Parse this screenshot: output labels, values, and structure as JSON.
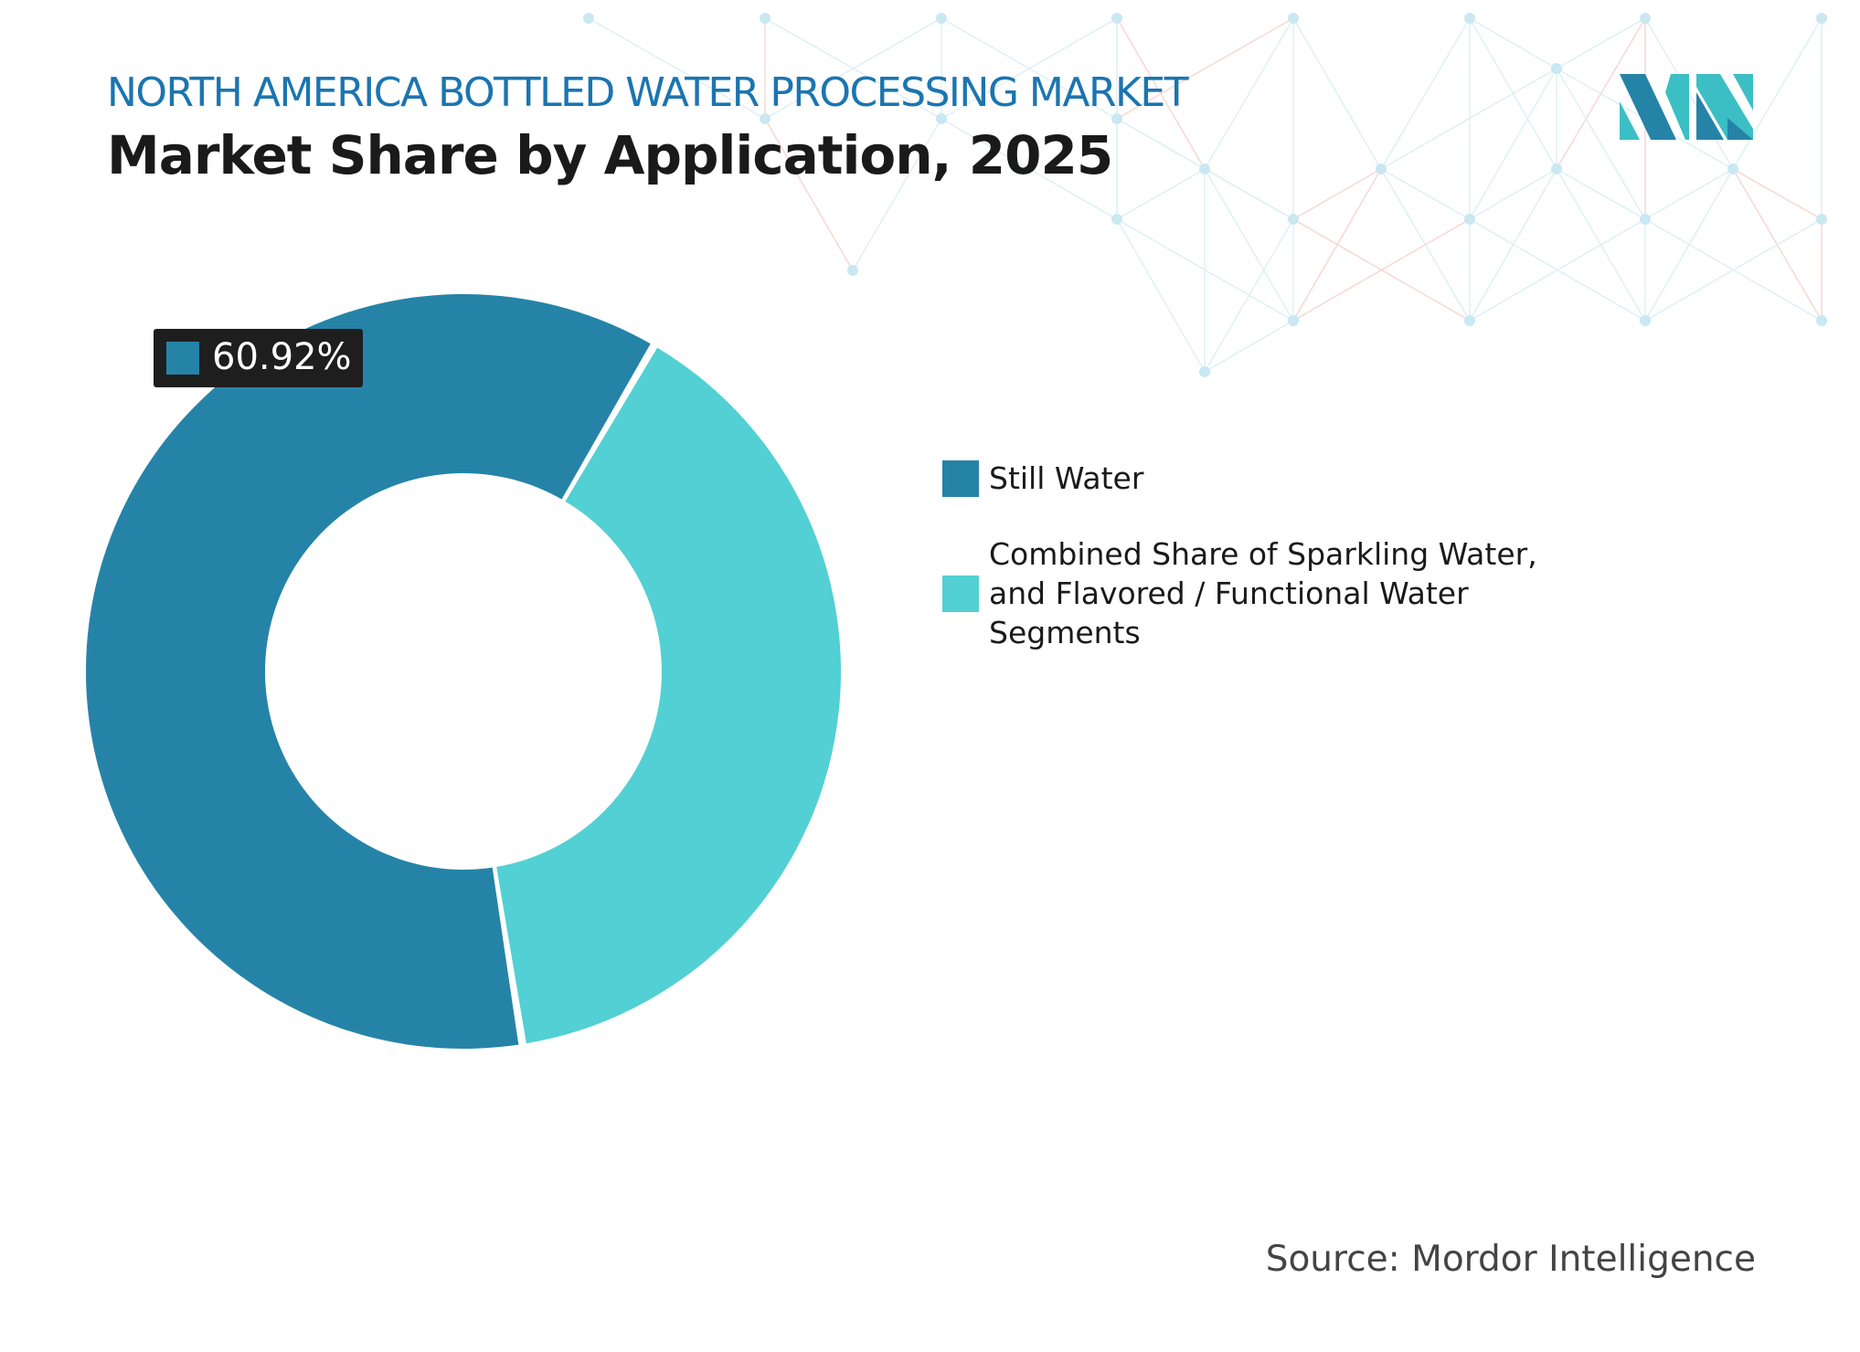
{
  "header": {
    "supertitle": "NORTH AMERICA BOTTLED WATER PROCESSING MARKET",
    "title": "Market Share by Application, 2025"
  },
  "chart_data": {
    "type": "pie",
    "donut": true,
    "categories": [
      "Still Water",
      "Combined Share of Sparkling Water, and Flavored / Functional Water Segments"
    ],
    "values": [
      60.92,
      39.08
    ],
    "colors": [
      "#2683a8",
      "#52d0d3"
    ],
    "data_labels": [
      "60.92%"
    ],
    "legend_position": "right"
  },
  "source": "Source: Mordor Intelligence",
  "logo_text": "Mordor Intelligence"
}
